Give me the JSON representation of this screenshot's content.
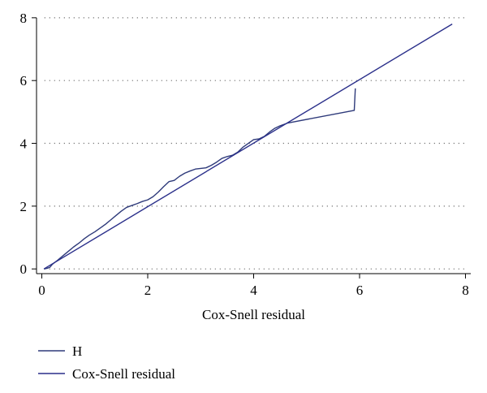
{
  "chart_data": {
    "type": "line",
    "title": "",
    "xlabel": "Cox-Snell residual",
    "ylabel": "",
    "xlim": [
      -0.1,
      8.1
    ],
    "ylim": [
      -0.15,
      8.1
    ],
    "xticks": [
      0,
      2,
      4,
      6,
      8
    ],
    "yticks": [
      0,
      2,
      4,
      6,
      8
    ],
    "xtick_labels": [
      "0",
      "2",
      "4",
      "6",
      "8"
    ],
    "ytick_labels": [
      "0",
      "2",
      "4",
      "6",
      "8"
    ],
    "grid": "horizontal dotted",
    "legend": "bottom-left",
    "series": [
      {
        "name": "H",
        "color": "#2e3a7a",
        "x": [
          0.04,
          0.1,
          0.15,
          0.2,
          0.3,
          0.4,
          0.5,
          0.6,
          0.7,
          0.8,
          0.9,
          1.0,
          1.1,
          1.2,
          1.3,
          1.4,
          1.5,
          1.6,
          1.7,
          1.8,
          1.9,
          2.0,
          2.1,
          2.2,
          2.3,
          2.4,
          2.5,
          2.6,
          2.7,
          2.8,
          2.9,
          3.0,
          3.1,
          3.2,
          3.3,
          3.4,
          3.5,
          3.6,
          3.7,
          3.8,
          3.9,
          4.0,
          4.1,
          4.2,
          4.3,
          4.4,
          4.5,
          4.65,
          5.9,
          5.92
        ],
        "y": [
          0.0,
          0.02,
          0.05,
          0.15,
          0.28,
          0.42,
          0.56,
          0.7,
          0.82,
          0.96,
          1.08,
          1.18,
          1.3,
          1.42,
          1.56,
          1.7,
          1.84,
          1.96,
          2.02,
          2.08,
          2.15,
          2.2,
          2.3,
          2.45,
          2.62,
          2.78,
          2.82,
          2.95,
          3.05,
          3.12,
          3.18,
          3.2,
          3.22,
          3.3,
          3.4,
          3.52,
          3.58,
          3.62,
          3.72,
          3.88,
          4.0,
          4.12,
          4.14,
          4.22,
          4.36,
          4.48,
          4.56,
          4.65,
          5.05,
          5.75
        ]
      },
      {
        "name": "Cox-Snell residual",
        "color": "#2a2f8a",
        "x": [
          0.04,
          7.75
        ],
        "y": [
          0.0,
          7.8
        ]
      }
    ]
  }
}
